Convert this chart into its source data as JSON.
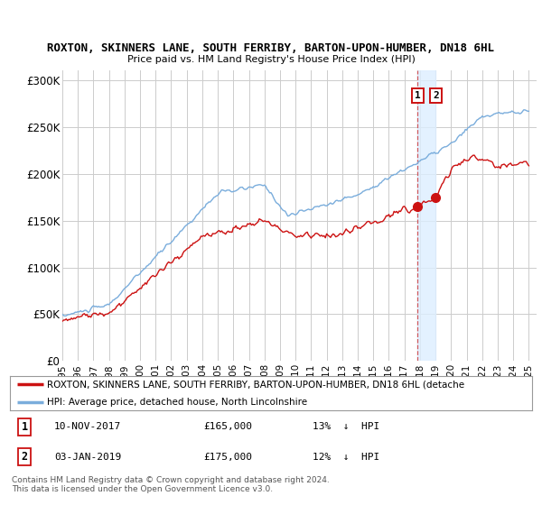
{
  "title": "ROXTON, SKINNERS LANE, SOUTH FERRIBY, BARTON-UPON-HUMBER, DN18 6HL",
  "subtitle": "Price paid vs. HM Land Registry's House Price Index (HPI)",
  "yticks": [
    0,
    50000,
    100000,
    150000,
    200000,
    250000,
    300000
  ],
  "ytick_labels": [
    "£0",
    "£50K",
    "£100K",
    "£150K",
    "£200K",
    "£250K",
    "£300K"
  ],
  "ylim": [
    0,
    310000
  ],
  "x_start_year": 1995,
  "x_end_year": 2025,
  "xtick_years": [
    1995,
    1996,
    1997,
    1998,
    1999,
    2000,
    2001,
    2002,
    2003,
    2004,
    2005,
    2006,
    2007,
    2008,
    2009,
    2010,
    2011,
    2012,
    2013,
    2014,
    2015,
    2016,
    2017,
    2018,
    2019,
    2020,
    2021,
    2022,
    2023,
    2024,
    2025
  ],
  "hpi_color": "#7aaddc",
  "price_color": "#cc1111",
  "marker1_x": 2017.86,
  "marker2_x": 2019.01,
  "marker1_price": 165000,
  "marker2_price": 175000,
  "legend1": "ROXTON, SKINNERS LANE, SOUTH FERRIBY, BARTON-UPON-HUMBER, DN18 6HL (detache",
  "legend2": "HPI: Average price, detached house, North Lincolnshire",
  "footer": "Contains HM Land Registry data © Crown copyright and database right 2024.\nThis data is licensed under the Open Government Licence v3.0.",
  "bg_color": "#ffffff",
  "grid_color": "#cccccc",
  "shade_color": "#ddeeff"
}
